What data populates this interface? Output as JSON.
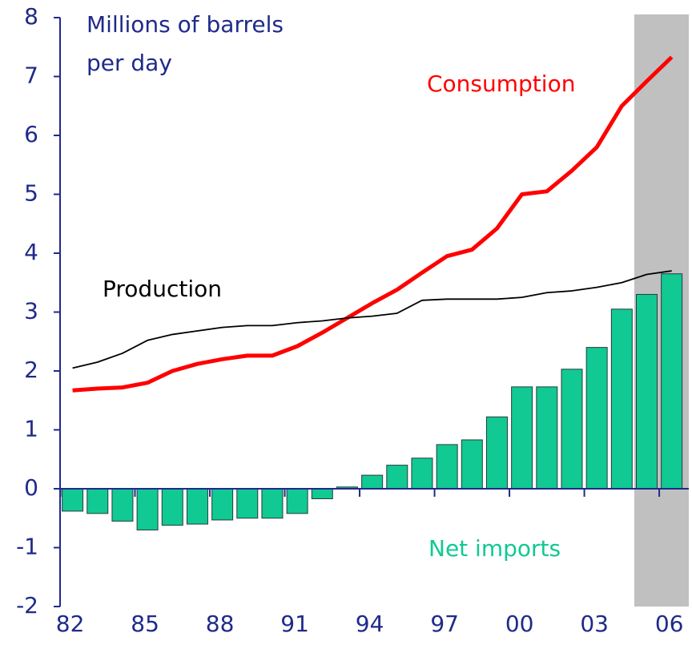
{
  "chart_data": {
    "type": "bar_line",
    "ylabel": [
      "Millions of barrels",
      "per day"
    ],
    "categories": [
      "82",
      null,
      null,
      "85",
      null,
      null,
      "88",
      null,
      null,
      "91",
      null,
      null,
      "94",
      null,
      null,
      "97",
      null,
      null,
      "00",
      null,
      null,
      "03",
      null,
      null,
      "06"
    ],
    "series": [
      {
        "name": "Net imports",
        "type": "bar",
        "color": "#10c993",
        "values": [
          -0.38,
          -0.42,
          -0.55,
          -0.7,
          -0.62,
          -0.6,
          -0.53,
          -0.5,
          -0.5,
          -0.42,
          -0.17,
          0.03,
          0.23,
          0.4,
          0.52,
          0.75,
          0.83,
          1.22,
          1.73,
          1.73,
          2.03,
          2.4,
          3.05,
          3.3,
          3.65
        ]
      },
      {
        "name": "Consumption",
        "type": "line",
        "color": "#ff0000",
        "values": [
          1.67,
          1.7,
          1.72,
          1.8,
          2.0,
          2.12,
          2.2,
          2.26,
          2.26,
          2.42,
          2.65,
          2.9,
          3.15,
          3.38,
          3.67,
          3.95,
          4.06,
          4.42,
          5.0,
          5.05,
          5.4,
          5.8,
          6.5,
          6.92,
          7.33
        ]
      },
      {
        "name": "Production",
        "type": "line",
        "color": "#000000",
        "values": [
          2.05,
          2.15,
          2.3,
          2.52,
          2.62,
          2.68,
          2.74,
          2.77,
          2.77,
          2.82,
          2.85,
          2.9,
          2.93,
          2.98,
          3.2,
          3.22,
          3.22,
          3.22,
          3.25,
          3.33,
          3.36,
          3.42,
          3.5,
          3.64,
          3.7
        ]
      }
    ],
    "ylim": [
      -2,
      8
    ],
    "yticks": [
      -2,
      -1,
      0,
      1,
      2,
      3,
      4,
      5,
      6,
      7,
      8
    ],
    "shaded_last": 2,
    "shade_color": "#c0c0c0"
  }
}
